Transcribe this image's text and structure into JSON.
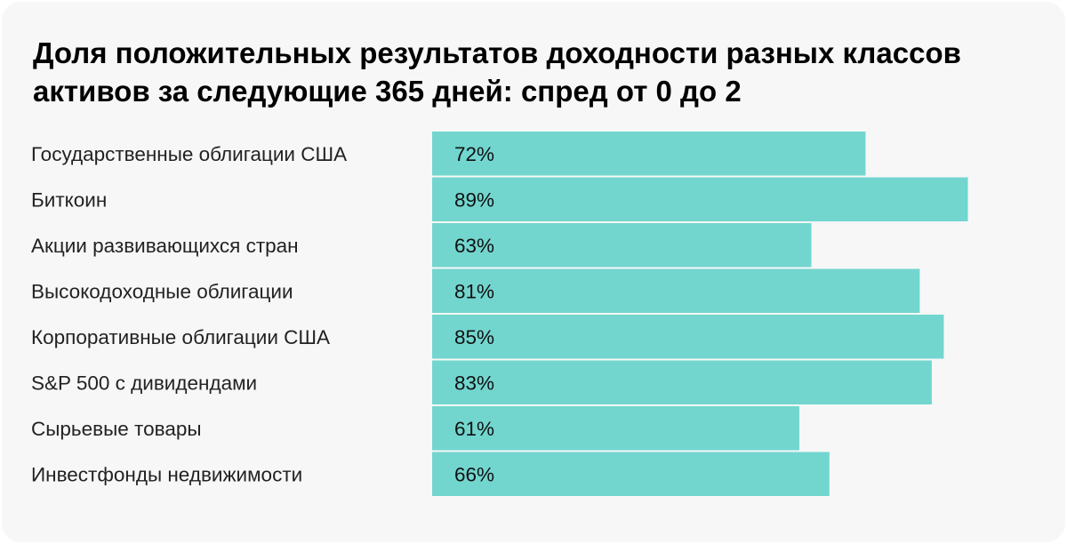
{
  "chart_data": {
    "type": "bar",
    "orientation": "horizontal",
    "title": "Доля положительных результатов доходности разных классов активов за следующие 365 дней: спред от 0 до 2",
    "categories": [
      "Государственные облигации США",
      "Биткоин",
      "Акции развивающихся стран",
      "Высокодоходные облигации",
      "Корпоративные облигации США",
      "S&P 500 с дивидендами",
      "Сырьевые товары",
      "Инвестфонды недвижимости"
    ],
    "values": [
      72,
      89,
      63,
      81,
      85,
      83,
      61,
      66
    ],
    "value_labels": [
      "72%",
      "89%",
      "63%",
      "81%",
      "85%",
      "83%",
      "61%",
      "66%"
    ],
    "unit": "%",
    "xlim": [
      0,
      100
    ],
    "grid": false,
    "legend": "none",
    "colors": {
      "bar": "#72d6cf",
      "background": "#f7f7f7",
      "text": "#222222"
    }
  }
}
